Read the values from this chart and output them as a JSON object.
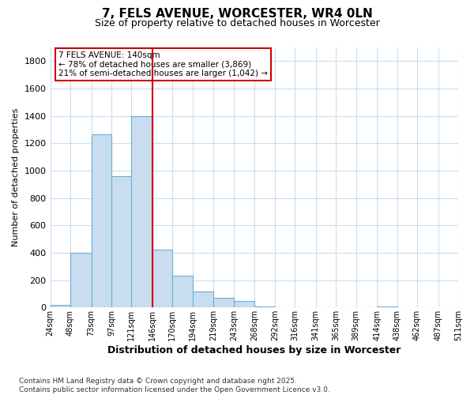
{
  "title": "7, FELS AVENUE, WORCESTER, WR4 0LN",
  "subtitle": "Size of property relative to detached houses in Worcester",
  "xlabel": "Distribution of detached houses by size in Worcester",
  "ylabel": "Number of detached properties",
  "footer_line1": "Contains HM Land Registry data © Crown copyright and database right 2025.",
  "footer_line2": "Contains public sector information licensed under the Open Government Licence v3.0.",
  "bar_left_edges": [
    24,
    48,
    73,
    97,
    121,
    146,
    170,
    194,
    219,
    243,
    268,
    292,
    316,
    341,
    365,
    389,
    414,
    438,
    462,
    487
  ],
  "bar_widths": [
    24,
    25,
    24,
    24,
    25,
    24,
    24,
    25,
    24,
    25,
    24,
    24,
    25,
    24,
    24,
    25,
    24,
    24,
    25,
    24
  ],
  "bar_heights": [
    20,
    400,
    1265,
    960,
    1400,
    425,
    235,
    115,
    70,
    50,
    10,
    0,
    0,
    0,
    0,
    0,
    10,
    0,
    0,
    0
  ],
  "tick_labels": [
    "24sqm",
    "48sqm",
    "73sqm",
    "97sqm",
    "121sqm",
    "146sqm",
    "170sqm",
    "194sqm",
    "219sqm",
    "243sqm",
    "268sqm",
    "292sqm",
    "316sqm",
    "341sqm",
    "365sqm",
    "389sqm",
    "414sqm",
    "438sqm",
    "462sqm",
    "487sqm",
    "511sqm"
  ],
  "bar_color": "#c8ddf0",
  "bar_edge_color": "#6baed6",
  "grid_color": "#c8ddf0",
  "vline_x": 146,
  "vline_color": "#cc0000",
  "annotation_box_text": "7 FELS AVENUE: 140sqm\n← 78% of detached houses are smaller (3,869)\n21% of semi-detached houses are larger (1,042) →",
  "ylim": [
    0,
    1900
  ],
  "yticks": [
    0,
    200,
    400,
    600,
    800,
    1000,
    1200,
    1400,
    1600,
    1800
  ],
  "background_color": "#ffffff",
  "fig_width": 6.0,
  "fig_height": 5.0,
  "dpi": 100
}
